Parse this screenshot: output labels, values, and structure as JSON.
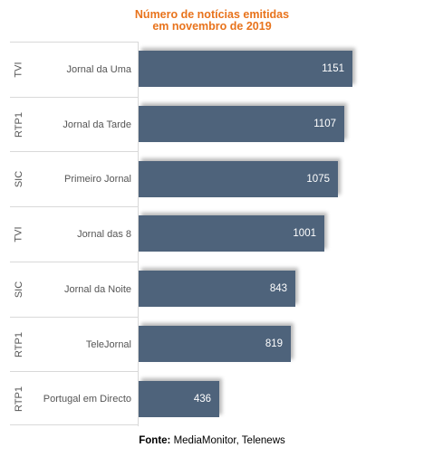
{
  "chart_data": {
    "type": "bar",
    "orientation": "horizontal",
    "title_line1": "Número de notícias emitidas",
    "title_line2": "em novembro de 2019",
    "categories": [
      {
        "channel": "TVI",
        "program": "Jornal da Uma"
      },
      {
        "channel": "RTP1",
        "program": "Jornal da Tarde"
      },
      {
        "channel": "SIC",
        "program": "Primeiro Jornal"
      },
      {
        "channel": "TVI",
        "program": "Jornal das 8"
      },
      {
        "channel": "SIC",
        "program": "Jornal da Noite"
      },
      {
        "channel": "RTP1",
        "program": "TeleJornal"
      },
      {
        "channel": "RTP1",
        "program": "Portugal em Directo"
      }
    ],
    "values": [
      1151,
      1107,
      1075,
      1001,
      843,
      819,
      436
    ],
    "xlim": [
      0,
      1151
    ],
    "bar_color": "#4e637b",
    "title_color": "#e8731c",
    "grid": false
  },
  "source": {
    "label": "Fonte:",
    "text": " MediaMonitor, Telenews"
  }
}
